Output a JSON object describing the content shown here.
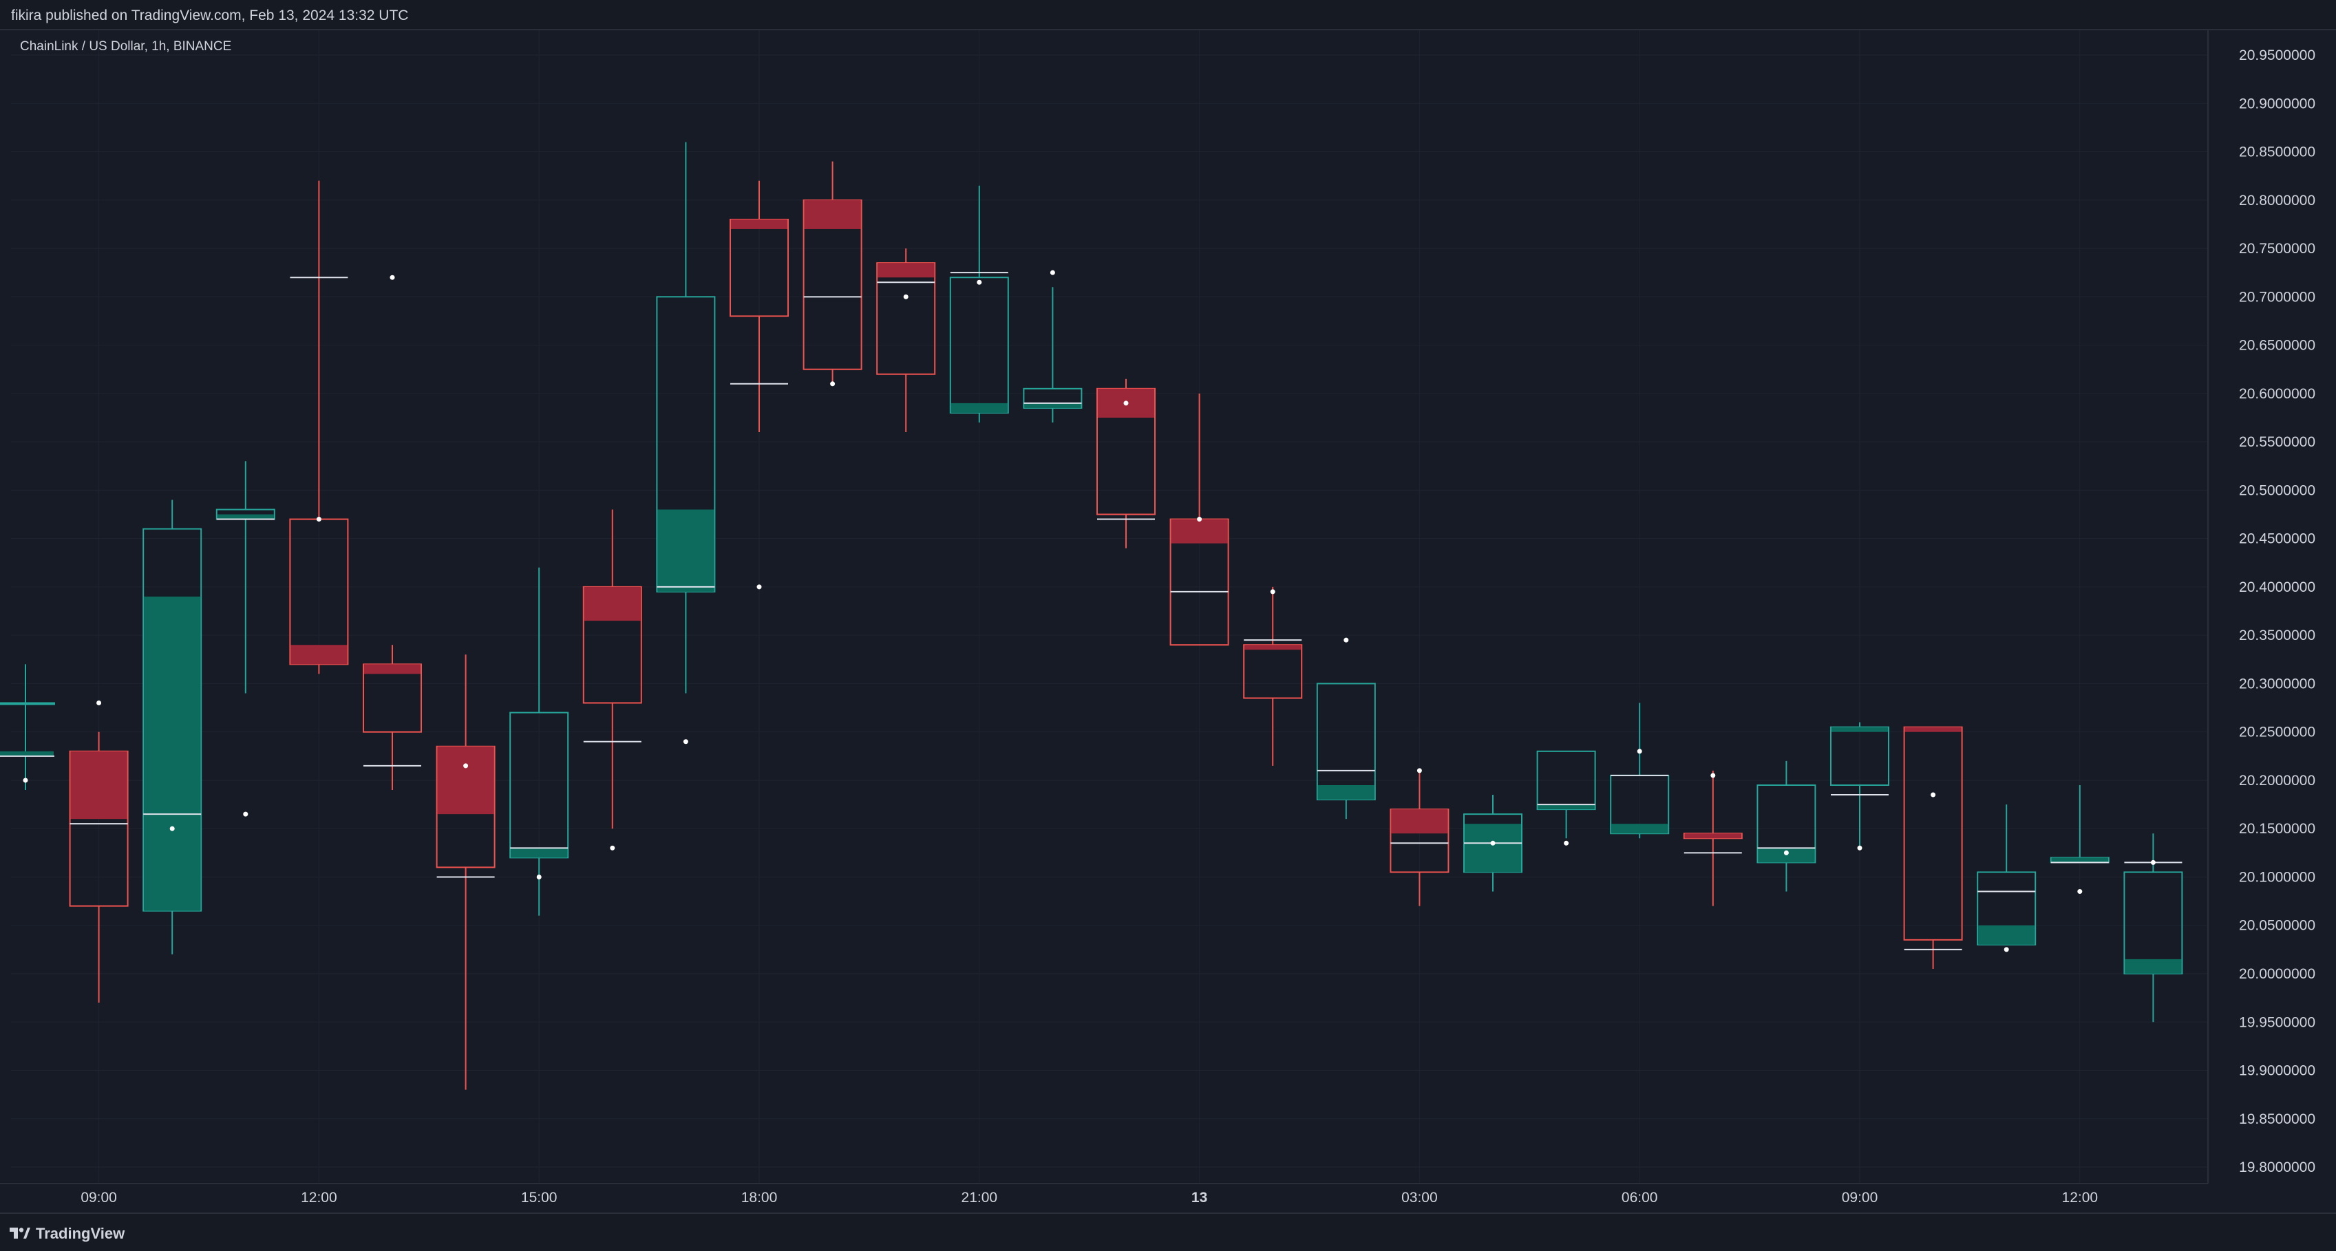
{
  "header": {
    "publish_line": "fikira published on TradingView.com, Feb 13, 2024 13:32 UTC"
  },
  "symbol_line": "ChainLink / US Dollar, 1h, BINANCE",
  "footer": {
    "brand": "TradingView",
    "logo_icon": "tradingview-logo-icon"
  },
  "colors": {
    "background": "#171b25",
    "grid": "#1f2430",
    "up": "#0d6b5e",
    "up_border": "#26a69a",
    "down": "#9b2738",
    "down_border": "#ef5350",
    "text": "#d1d4dc",
    "marker": "#ffffff"
  },
  "chart_data": {
    "type": "candlestick",
    "symbol": "ChainLink / US Dollar",
    "interval": "1h",
    "exchange": "BINANCE",
    "ylim": [
      19.77,
      20.97
    ],
    "y_ticks": [
      "20.9500000",
      "20.9000000",
      "20.8500000",
      "20.8000000",
      "20.7500000",
      "20.7000000",
      "20.6500000",
      "20.6000000",
      "20.5500000",
      "20.5000000",
      "20.4500000",
      "20.4000000",
      "20.3500000",
      "20.3000000",
      "20.2500000",
      "20.2000000",
      "20.1500000",
      "20.1000000",
      "20.0500000",
      "20.0000000",
      "19.9500000",
      "19.9000000",
      "19.8500000",
      "19.8000000"
    ],
    "x_ticks": [
      {
        "label": "09:00",
        "bar": 1
      },
      {
        "label": "12:00",
        "bar": 4
      },
      {
        "label": "15:00",
        "bar": 7
      },
      {
        "label": "18:00",
        "bar": 10
      },
      {
        "label": "21:00",
        "bar": 13
      },
      {
        "label": "13",
        "bar": 16,
        "bold": true
      },
      {
        "label": "03:00",
        "bar": 19
      },
      {
        "label": "06:00",
        "bar": 22
      },
      {
        "label": "09:00",
        "bar": 25
      },
      {
        "label": "12:00",
        "bar": 28
      }
    ],
    "candles": [
      {
        "time": "08:00",
        "box_top": 20.28,
        "box_bottom": 20.28,
        "high": 20.32,
        "low": 20.19,
        "filled_top": 20.23,
        "filled_bottom": 20.225,
        "mid": 20.225,
        "marker": 20.2,
        "dir": "up"
      },
      {
        "time": "09:00",
        "box_top": 20.23,
        "box_bottom": 20.07,
        "high": 20.25,
        "low": 19.97,
        "filled_top": 20.23,
        "filled_bottom": 20.16,
        "mid": 20.155,
        "marker": 20.28,
        "dir": "down"
      },
      {
        "time": "10:00",
        "box_top": 20.46,
        "box_bottom": 20.065,
        "high": 20.49,
        "low": 20.02,
        "filled_top": 20.39,
        "filled_bottom": 20.065,
        "mid": 20.165,
        "marker": 20.15,
        "dir": "up"
      },
      {
        "time": "11:00",
        "box_top": 20.48,
        "box_bottom": 20.47,
        "high": 20.53,
        "low": 20.29,
        "filled_top": 20.475,
        "filled_bottom": 20.47,
        "mid": 20.47,
        "marker": 20.165,
        "dir": "up"
      },
      {
        "time": "12:00",
        "box_top": 20.47,
        "box_bottom": 20.32,
        "high": 20.82,
        "low": 20.31,
        "filled_top": 20.34,
        "filled_bottom": 20.32,
        "mid": 20.72,
        "marker": 20.47,
        "dir": "down"
      },
      {
        "time": "13:00",
        "box_top": 20.32,
        "box_bottom": 20.25,
        "high": 20.34,
        "low": 20.19,
        "filled_top": 20.32,
        "filled_bottom": 20.31,
        "mid": 20.215,
        "marker": 20.72,
        "dir": "down"
      },
      {
        "time": "14:00",
        "box_top": 20.235,
        "box_bottom": 20.11,
        "high": 20.33,
        "low": 19.88,
        "filled_top": 20.235,
        "filled_bottom": 20.165,
        "mid": 20.1,
        "marker": 20.215,
        "dir": "down"
      },
      {
        "time": "15:00",
        "box_top": 20.27,
        "box_bottom": 20.12,
        "high": 20.42,
        "low": 20.06,
        "filled_top": 20.13,
        "filled_bottom": 20.12,
        "mid": 20.13,
        "marker": 20.1,
        "dir": "up"
      },
      {
        "time": "16:00",
        "box_top": 20.4,
        "box_bottom": 20.28,
        "high": 20.48,
        "low": 20.15,
        "filled_top": 20.4,
        "filled_bottom": 20.365,
        "mid": 20.24,
        "marker": 20.13,
        "dir": "down"
      },
      {
        "time": "17:00",
        "box_top": 20.7,
        "box_bottom": 20.395,
        "high": 20.86,
        "low": 20.29,
        "filled_top": 20.48,
        "filled_bottom": 20.395,
        "mid": 20.4,
        "marker": 20.24,
        "dir": "up"
      },
      {
        "time": "18:00",
        "box_top": 20.78,
        "box_bottom": 20.68,
        "high": 20.82,
        "low": 20.56,
        "filled_top": 20.78,
        "filled_bottom": 20.77,
        "mid": 20.61,
        "marker": 20.4,
        "dir": "down"
      },
      {
        "time": "19:00",
        "box_top": 20.8,
        "box_bottom": 20.625,
        "high": 20.84,
        "low": 20.61,
        "filled_top": 20.8,
        "filled_bottom": 20.77,
        "mid": 20.7,
        "marker": 20.61,
        "dir": "down"
      },
      {
        "time": "20:00",
        "box_top": 20.735,
        "box_bottom": 20.62,
        "high": 20.75,
        "low": 20.56,
        "filled_top": 20.735,
        "filled_bottom": 20.72,
        "mid": 20.715,
        "marker": 20.7,
        "dir": "down"
      },
      {
        "time": "21:00",
        "box_top": 20.72,
        "box_bottom": 20.58,
        "high": 20.815,
        "low": 20.57,
        "filled_top": 20.59,
        "filled_bottom": 20.58,
        "mid": 20.725,
        "marker": 20.715,
        "dir": "up"
      },
      {
        "time": "22:00",
        "box_top": 20.605,
        "box_bottom": 20.585,
        "high": 20.71,
        "low": 20.57,
        "filled_top": 20.59,
        "filled_bottom": 20.585,
        "mid": 20.59,
        "marker": 20.725,
        "dir": "up"
      },
      {
        "time": "23:00",
        "box_top": 20.605,
        "box_bottom": 20.475,
        "high": 20.615,
        "low": 20.44,
        "filled_top": 20.605,
        "filled_bottom": 20.575,
        "mid": 20.47,
        "marker": 20.59,
        "dir": "down"
      },
      {
        "time": "00:00",
        "box_top": 20.47,
        "box_bottom": 20.34,
        "high": 20.6,
        "low": 20.34,
        "filled_top": 20.47,
        "filled_bottom": 20.445,
        "mid": 20.395,
        "marker": 20.47,
        "dir": "down"
      },
      {
        "time": "01:00",
        "box_top": 20.34,
        "box_bottom": 20.285,
        "high": 20.4,
        "low": 20.215,
        "filled_top": 20.34,
        "filled_bottom": 20.335,
        "mid": 20.345,
        "marker": 20.395,
        "dir": "down"
      },
      {
        "time": "02:00",
        "box_top": 20.3,
        "box_bottom": 20.18,
        "high": 20.3,
        "low": 20.16,
        "filled_top": 20.195,
        "filled_bottom": 20.18,
        "mid": 20.21,
        "marker": 20.345,
        "dir": "up"
      },
      {
        "time": "03:00",
        "box_top": 20.17,
        "box_bottom": 20.105,
        "high": 20.21,
        "low": 20.07,
        "filled_top": 20.17,
        "filled_bottom": 20.145,
        "mid": 20.135,
        "marker": 20.21,
        "dir": "down"
      },
      {
        "time": "04:00",
        "box_top": 20.165,
        "box_bottom": 20.105,
        "high": 20.185,
        "low": 20.085,
        "filled_top": 20.155,
        "filled_bottom": 20.105,
        "mid": 20.135,
        "marker": 20.135,
        "dir": "up"
      },
      {
        "time": "05:00",
        "box_top": 20.23,
        "box_bottom": 20.17,
        "high": 20.23,
        "low": 20.14,
        "filled_top": 20.175,
        "filled_bottom": 20.17,
        "mid": 20.175,
        "marker": 20.135,
        "dir": "up"
      },
      {
        "time": "06:00",
        "box_top": 20.205,
        "box_bottom": 20.145,
        "high": 20.28,
        "low": 20.14,
        "filled_top": 20.155,
        "filled_bottom": 20.145,
        "mid": 20.205,
        "marker": 20.23,
        "dir": "up"
      },
      {
        "time": "07:00",
        "box_top": 20.145,
        "box_bottom": 20.14,
        "high": 20.21,
        "low": 20.07,
        "filled_top": 20.145,
        "filled_bottom": 20.14,
        "mid": 20.125,
        "marker": 20.205,
        "dir": "down"
      },
      {
        "time": "08:00",
        "box_top": 20.195,
        "box_bottom": 20.115,
        "high": 20.22,
        "low": 20.085,
        "filled_top": 20.13,
        "filled_bottom": 20.115,
        "mid": 20.13,
        "marker": 20.125,
        "dir": "up"
      },
      {
        "time": "09:00",
        "box_top": 20.255,
        "box_bottom": 20.195,
        "high": 20.26,
        "low": 20.13,
        "filled_top": 20.255,
        "filled_bottom": 20.25,
        "mid": 20.185,
        "marker": 20.13,
        "dir": "up"
      },
      {
        "time": "10:00",
        "box_top": 20.255,
        "box_bottom": 20.035,
        "high": 20.255,
        "low": 20.005,
        "filled_top": 20.255,
        "filled_bottom": 20.25,
        "mid": 20.025,
        "marker": 20.185,
        "dir": "down"
      },
      {
        "time": "11:00",
        "box_top": 20.105,
        "box_bottom": 20.03,
        "high": 20.175,
        "low": 20.03,
        "filled_top": 20.05,
        "filled_bottom": 20.03,
        "mid": 20.085,
        "marker": 20.025,
        "dir": "up"
      },
      {
        "time": "12:00",
        "box_top": 20.12,
        "box_bottom": 20.115,
        "high": 20.195,
        "low": 20.115,
        "filled_top": 20.12,
        "filled_bottom": 20.115,
        "mid": 20.115,
        "marker": 20.085,
        "dir": "up"
      },
      {
        "time": "13:00",
        "box_top": 20.105,
        "box_bottom": 20.0,
        "high": 20.145,
        "low": 19.95,
        "filled_top": 20.015,
        "filled_bottom": 20.0,
        "mid": 20.115,
        "marker": 20.115,
        "dir": "up"
      }
    ]
  }
}
